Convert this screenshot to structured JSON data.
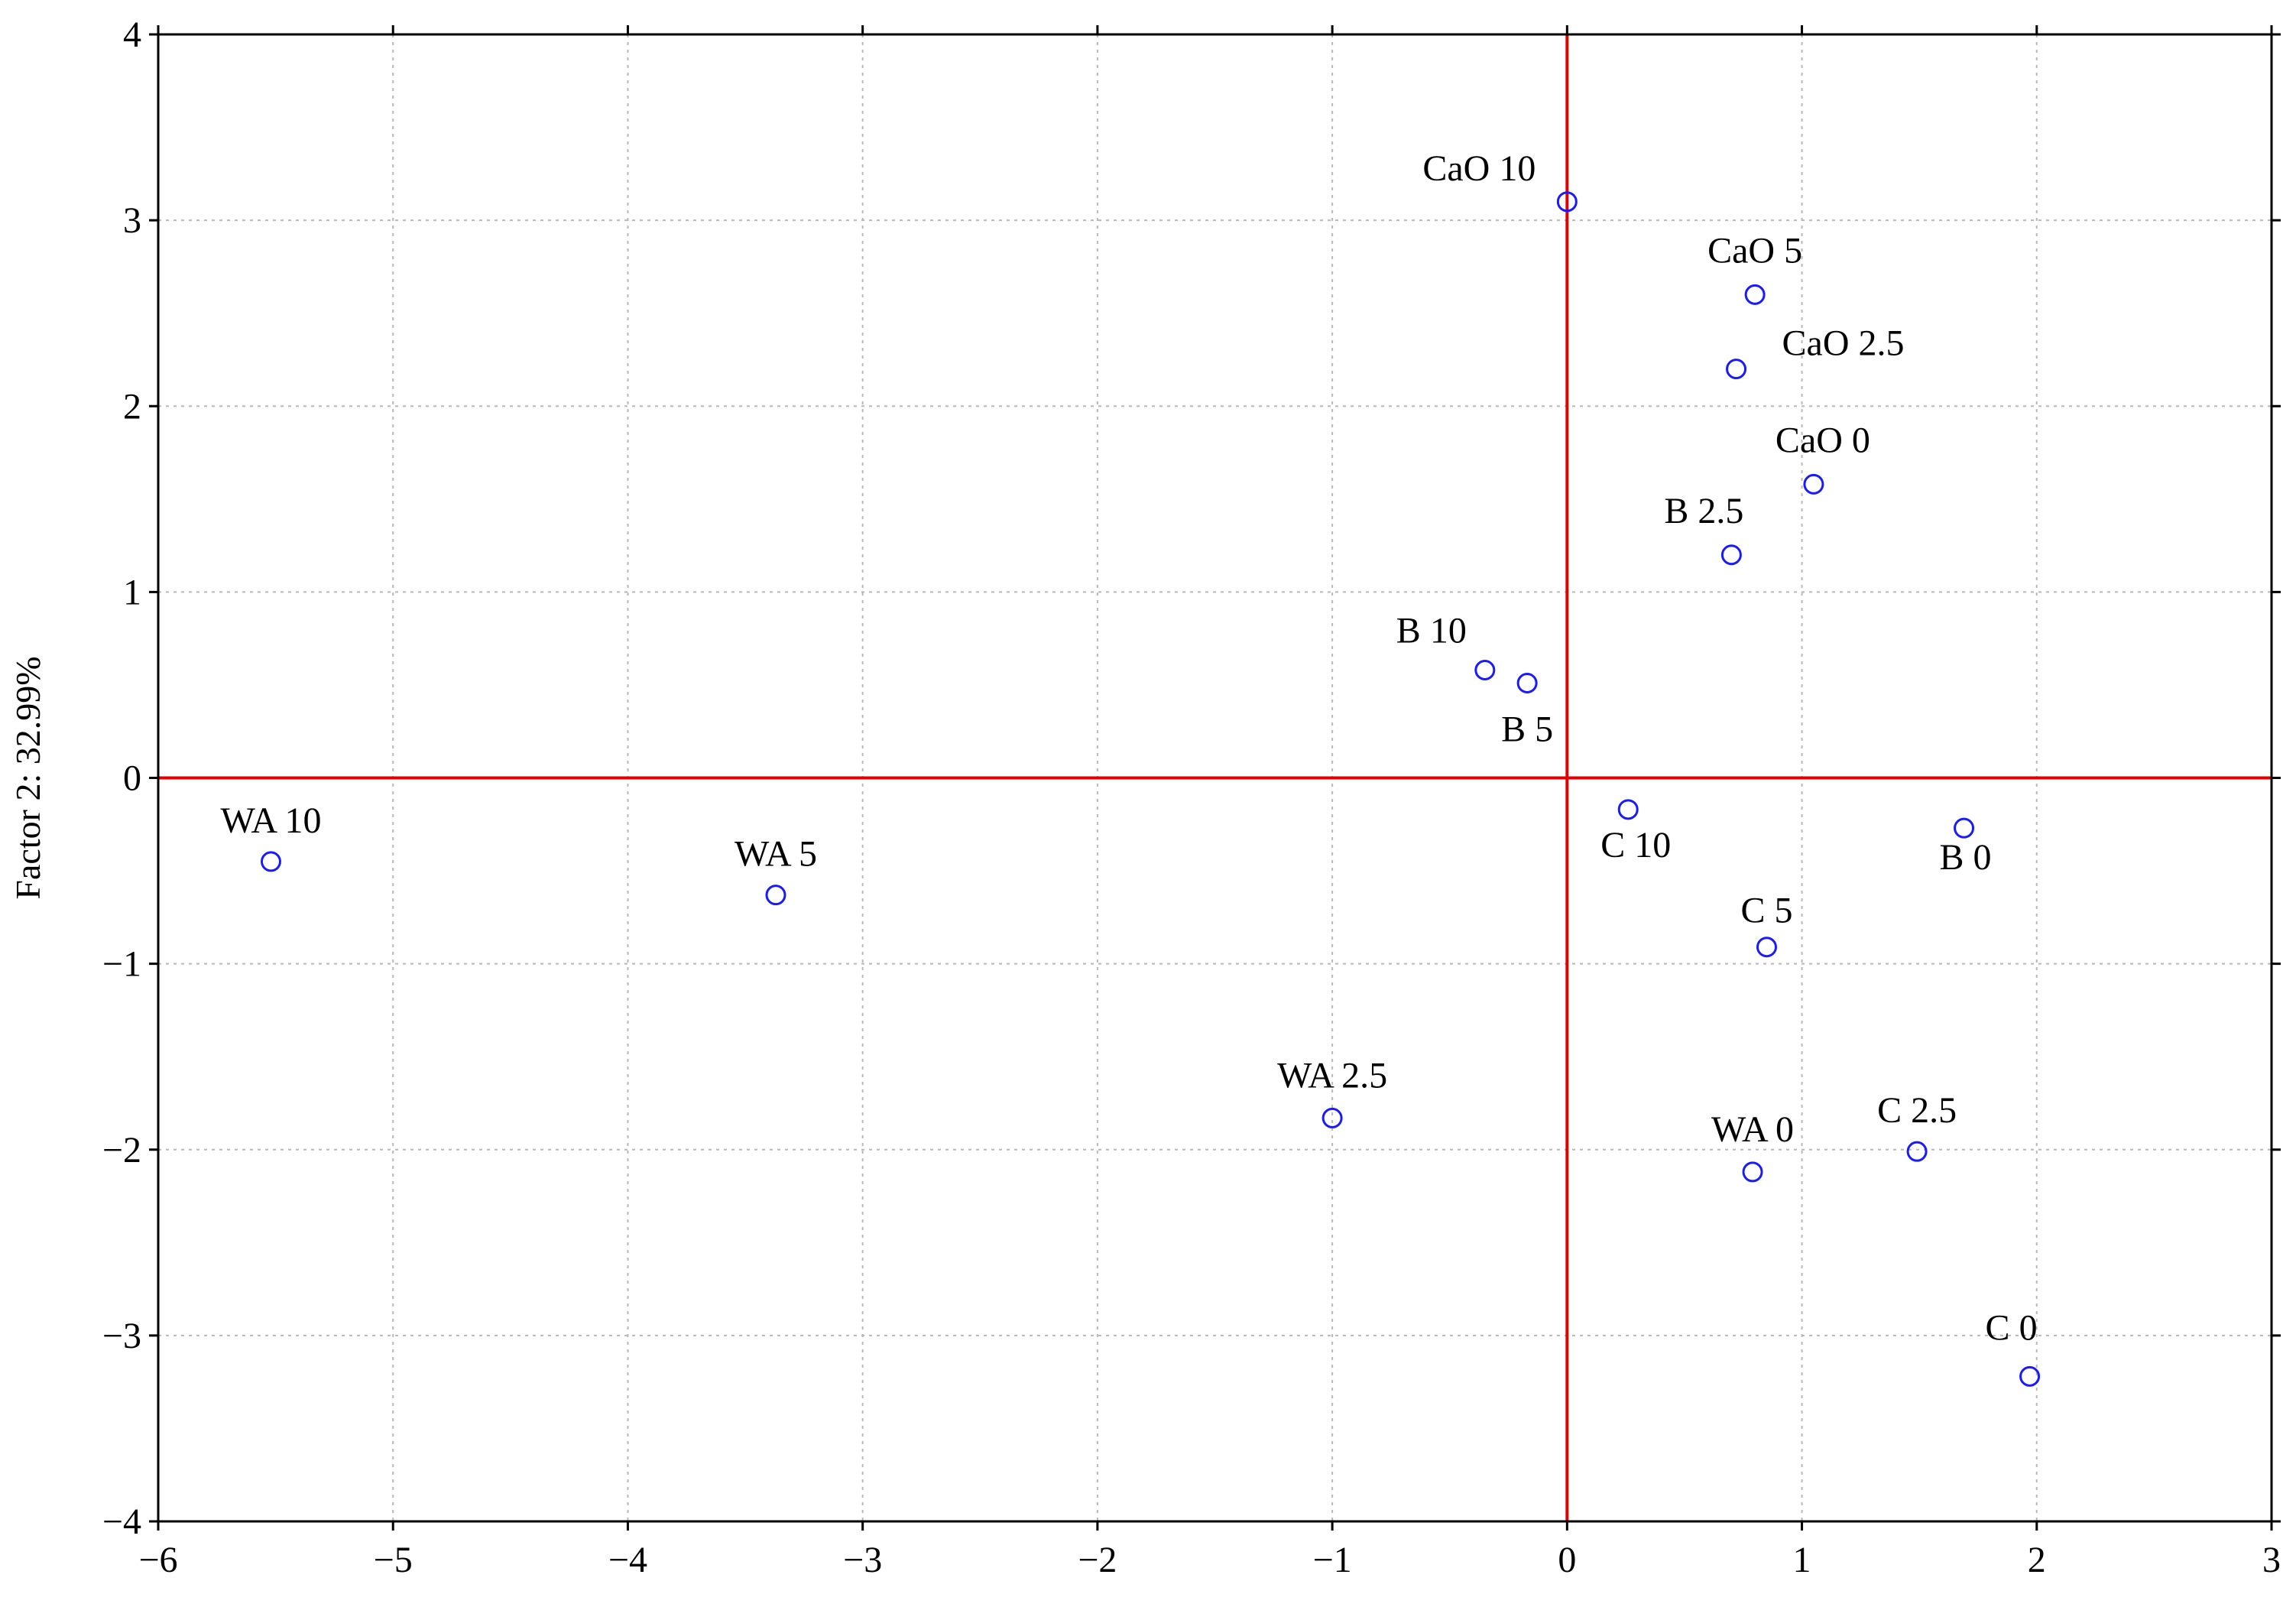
{
  "chart_data": {
    "type": "scatter",
    "title": "",
    "xlabel": "",
    "ylabel": "Factor 2: 32.99%",
    "xlim": [
      -6,
      3
    ],
    "ylim": [
      -4,
      4
    ],
    "x_ticks": [
      -6,
      -5,
      -4,
      -3,
      -2,
      -1,
      0,
      1,
      2,
      3
    ],
    "y_ticks": [
      -4,
      -3,
      -2,
      -1,
      0,
      1,
      2,
      3,
      4
    ],
    "x_tick_labels": [
      "−6",
      "−5",
      "−4",
      "−3",
      "−2",
      "−1",
      "0",
      "1",
      "2",
      "3"
    ],
    "y_tick_labels": [
      "−4",
      "−3",
      "−2",
      "−1",
      "0",
      "1",
      "2",
      "3",
      "4"
    ],
    "grid": true,
    "reference_lines": {
      "x": 0,
      "y": 0
    },
    "colors": {
      "marker": "#1a1aff",
      "reference_line": "#e00000",
      "grid": "#b8b8b8",
      "frame": "#000000"
    },
    "points": [
      {
        "label": "CaO 10",
        "x": 0.0,
        "y": 3.1
      },
      {
        "label": "CaO 5",
        "x": 0.8,
        "y": 2.6
      },
      {
        "label": "CaO 2.5",
        "x": 0.72,
        "y": 2.2
      },
      {
        "label": "CaO 0",
        "x": 1.05,
        "y": 1.58
      },
      {
        "label": "B 2.5",
        "x": 0.7,
        "y": 1.2
      },
      {
        "label": "B 10",
        "x": -0.35,
        "y": 0.58
      },
      {
        "label": "B 5",
        "x": -0.17,
        "y": 0.51
      },
      {
        "label": "C 10",
        "x": 0.26,
        "y": -0.17
      },
      {
        "label": "B 0",
        "x": 1.69,
        "y": -0.27
      },
      {
        "label": "WA 10",
        "x": -5.52,
        "y": -0.45
      },
      {
        "label": "WA 5",
        "x": -3.37,
        "y": -0.63
      },
      {
        "label": "C 5",
        "x": 0.85,
        "y": -0.91
      },
      {
        "label": "WA 2.5",
        "x": -1.0,
        "y": -1.83
      },
      {
        "label": "C 2.5",
        "x": 1.49,
        "y": -2.01
      },
      {
        "label": "WA 0",
        "x": 0.79,
        "y": -2.12
      },
      {
        "label": "C 0",
        "x": 1.97,
        "y": -3.22
      }
    ]
  }
}
